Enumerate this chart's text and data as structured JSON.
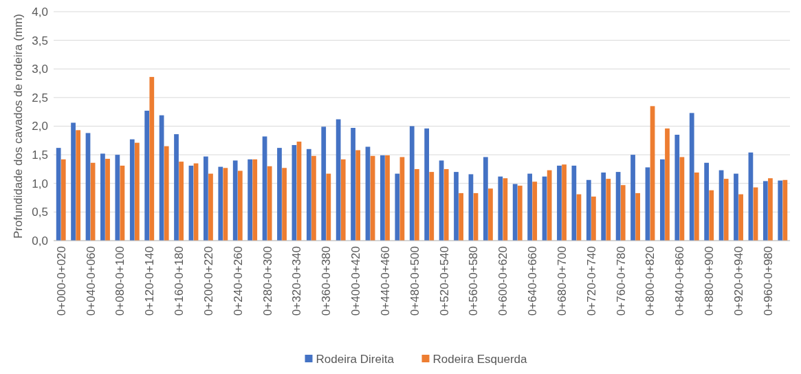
{
  "chart_data": {
    "type": "bar",
    "ylabel": "Profundidade dos cavados de rodeira (mm)",
    "categories": [
      "0+000-0+020",
      null,
      "0+040-0+060",
      null,
      "0+080-0+100",
      null,
      "0+120-0+140",
      null,
      "0+160-0+180",
      null,
      "0+200-0+220",
      null,
      "0+240-0+260",
      null,
      "0+280-0+300",
      null,
      "0+320-0+340",
      null,
      "0+360-0+380",
      null,
      "0+400-0+420",
      null,
      "0+440-0+460",
      null,
      "0+480-0+500",
      null,
      "0+520-0+540",
      null,
      "0+560-0+580",
      null,
      "0+600-0+620",
      null,
      "0+640-0+660",
      null,
      "0+680-0+700",
      null,
      "0+720-0+740",
      null,
      "0+760-0+780",
      null,
      "0+800-0+820",
      null,
      "0+840-0+860",
      null,
      "0+880-0+900",
      null,
      "0+920-0+940",
      null,
      "0+960-0+980",
      null
    ],
    "series": [
      {
        "name": "Rodeira Direita",
        "color": "#4472c4",
        "values": [
          1.62,
          2.06,
          1.88,
          1.52,
          1.5,
          1.77,
          2.27,
          2.19,
          1.86,
          1.31,
          1.47,
          1.29,
          1.4,
          1.42,
          1.82,
          1.62,
          1.67,
          1.6,
          1.99,
          2.12,
          1.97,
          1.64,
          1.49,
          1.17,
          2.0,
          1.96,
          1.4,
          1.2,
          1.16,
          1.46,
          1.12,
          0.99,
          1.17,
          1.12,
          1.31,
          1.31,
          1.06,
          1.19,
          1.2,
          1.5,
          1.28,
          1.42,
          1.85,
          2.23,
          1.36,
          1.23,
          1.17,
          1.54,
          1.04,
          1.05
        ]
      },
      {
        "name": "Rodeira Esquerda",
        "color": "#ed7d31",
        "values": [
          1.42,
          1.93,
          1.36,
          1.43,
          1.31,
          1.71,
          2.86,
          1.65,
          1.38,
          1.35,
          1.17,
          1.27,
          1.22,
          1.42,
          1.3,
          1.27,
          1.73,
          1.48,
          1.17,
          1.42,
          1.58,
          1.48,
          1.49,
          1.46,
          1.25,
          1.2,
          1.25,
          0.83,
          0.83,
          0.91,
          1.09,
          0.96,
          1.03,
          1.23,
          1.33,
          0.81,
          0.77,
          1.08,
          0.97,
          0.83,
          2.35,
          1.96,
          1.46,
          1.19,
          0.88,
          1.08,
          0.81,
          0.93,
          1.09,
          1.06
        ]
      }
    ],
    "ylim": [
      0,
      4
    ],
    "yticks": [
      {
        "value": 0,
        "label": "0,0"
      },
      {
        "value": 0.5,
        "label": "0,5"
      },
      {
        "value": 1,
        "label": "1,0"
      },
      {
        "value": 1.5,
        "label": "1,5"
      },
      {
        "value": 2,
        "label": "2,0"
      },
      {
        "value": 2.5,
        "label": "2,5"
      },
      {
        "value": 3,
        "label": "3,0"
      },
      {
        "value": 3.5,
        "label": "3,5"
      },
      {
        "value": 4,
        "label": "4,0"
      }
    ],
    "grid": "y",
    "legend": "bottom"
  }
}
